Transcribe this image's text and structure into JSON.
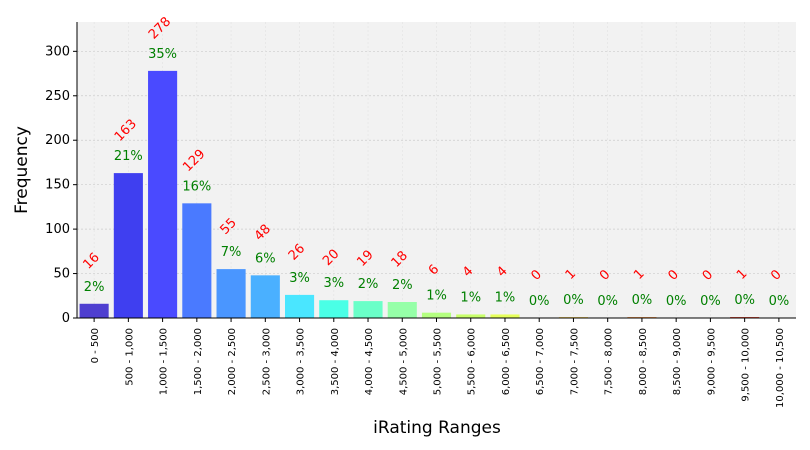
{
  "chart_data": {
    "type": "bar",
    "title": "",
    "xlabel": "iRating Ranges",
    "ylabel": "Frequency",
    "ylim": [
      0,
      333
    ],
    "yticks": [
      0,
      50,
      100,
      150,
      200,
      250,
      300
    ],
    "grid": true,
    "categories": [
      "0 - 500",
      "500 - 1,000",
      "1,000 - 1,500",
      "1,500 - 2,000",
      "2,000 - 2,500",
      "2,500 - 3,000",
      "3,000 - 3,500",
      "3,500 - 4,000",
      "4,000 - 4,500",
      "4,500 - 5,000",
      "5,000 - 5,500",
      "5,500 - 6,000",
      "6,000 - 6,500",
      "6,500 - 7,000",
      "7,000 - 7,500",
      "7,500 - 8,000",
      "8,000 - 8,500",
      "8,500 - 9,000",
      "9,000 - 9,500",
      "9,500 - 10,000",
      "10,000 - 10,500"
    ],
    "values": [
      16,
      163,
      278,
      129,
      55,
      48,
      26,
      20,
      19,
      18,
      6,
      4,
      4,
      0,
      1,
      0,
      1,
      0,
      0,
      1,
      0
    ],
    "percent_labels": [
      "2%",
      "21%",
      "35%",
      "16%",
      "7%",
      "6%",
      "3%",
      "3%",
      "2%",
      "2%",
      "1%",
      "1%",
      "1%",
      "0%",
      "0%",
      "0%",
      "0%",
      "0%",
      "0%",
      "0%",
      "0%"
    ],
    "bar_colors": [
      "#4f3fd0",
      "#3f3ff0",
      "#4a4aff",
      "#4a7aff",
      "#4a96ff",
      "#4ab0ff",
      "#4ae6ff",
      "#4affe6",
      "#6affc8",
      "#96ffa8",
      "#b4ff80",
      "#c8ff6a",
      "#e6ff5a",
      "#f5f05a",
      "#ffd24a",
      "#ffb040",
      "#ff8c30",
      "#ff6020",
      "#ff3c10",
      "#e82a10",
      "#c81a10"
    ],
    "colors": {
      "count_label": "#ff0000",
      "percent_label": "#008000",
      "plot_background": "#f2f2f2",
      "grid": "#cccccc"
    }
  }
}
